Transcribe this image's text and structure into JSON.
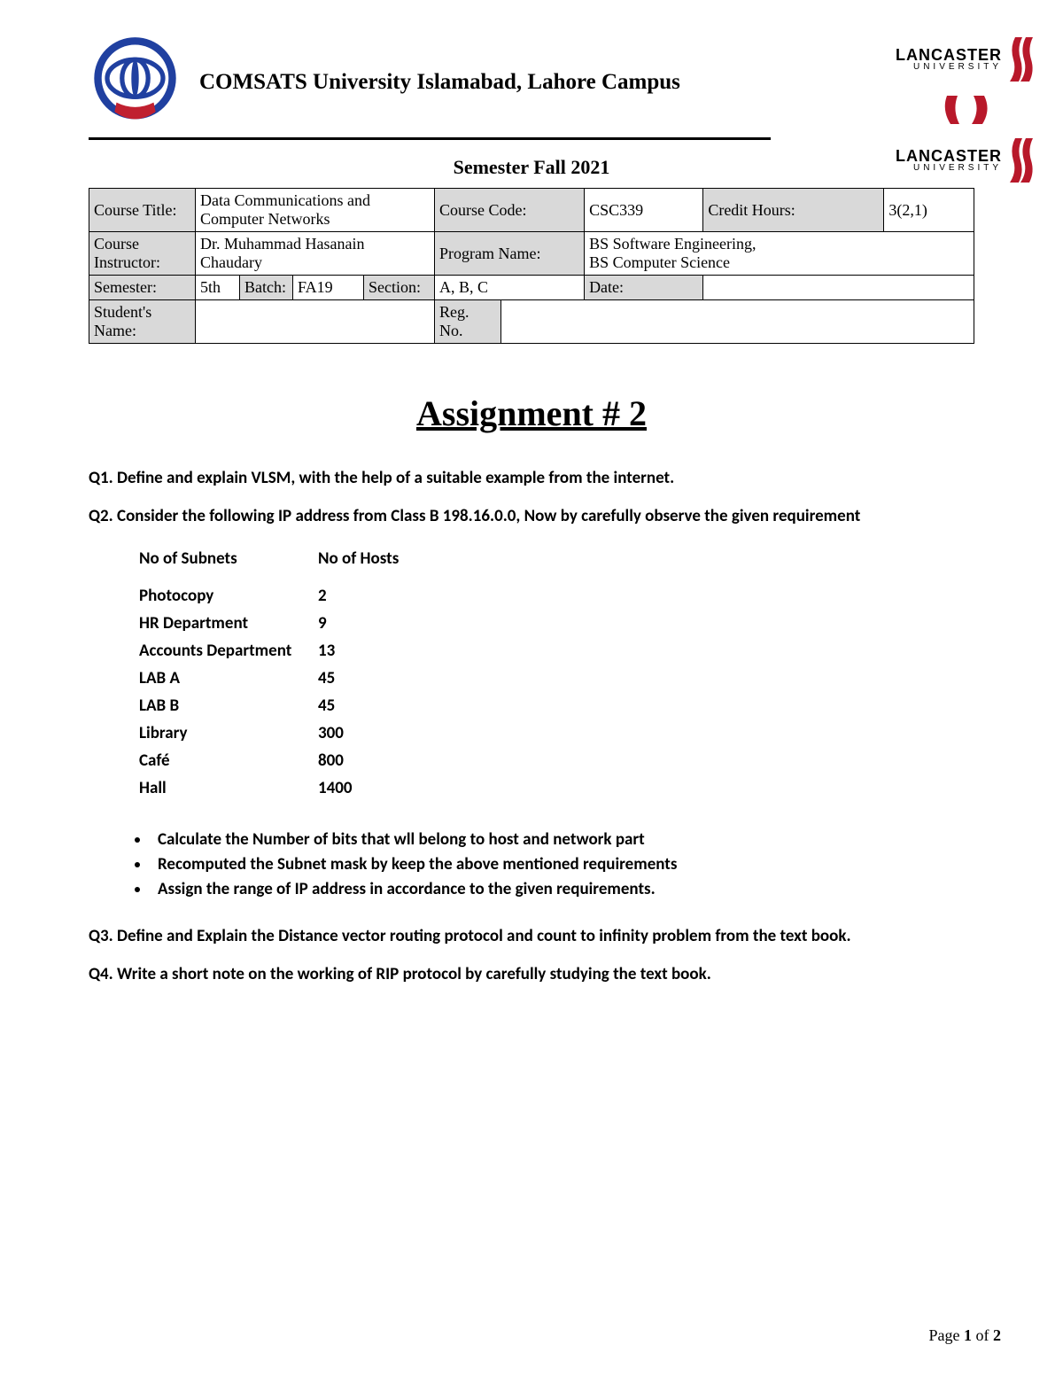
{
  "header": {
    "university": "COMSATS University Islamabad, Lahore Campus",
    "lancaster_top": "LANCASTER",
    "lancaster_bot": "UNIVERSITY",
    "semester_heading": "Semester Fall 2021"
  },
  "info_table": {
    "course_title_label": "Course Title:",
    "course_title": "Data Communications and Computer Networks",
    "course_code_label": "Course Code:",
    "course_code": "CSC339",
    "credit_label": "Credit Hours:",
    "credit": "3(2,1)",
    "instructor_label": "Course Instructor:",
    "instructor": "Dr. Muhammad Hasanain Chaudary",
    "program_label": "Program Name:",
    "program": "BS Software Engineering,\nBS Computer Science",
    "semester_label": "Semester:",
    "semester": "5th",
    "batch_label": "Batch:",
    "batch": "FA19",
    "section_label": "Section:",
    "section": "A, B, C",
    "date_label": "Date:",
    "date": "",
    "student_label": "Student's Name:",
    "student": "",
    "reg_label": "Reg. No.",
    "reg": ""
  },
  "body": {
    "title": "Assignment # 2",
    "q1": "Q1. Define and explain VLSM, with the help of a suitable example from the internet.",
    "q2": "Q2. Consider the following IP address from Class B 198.16.0.0, Now by carefully observe the given requirement",
    "subnet_headers": {
      "c1": "No of Subnets",
      "c2": "No of Hosts"
    },
    "subnets": [
      {
        "name": "Photocopy",
        "hosts": "2"
      },
      {
        "name": "HR Department",
        "hosts": "9"
      },
      {
        "name": "Accounts Department",
        "hosts": "13"
      },
      {
        "name": "LAB A",
        "hosts": "45"
      },
      {
        "name": "LAB B",
        "hosts": "45"
      },
      {
        "name": "Library",
        "hosts": "300"
      },
      {
        "name": "Café",
        "hosts": "800"
      },
      {
        "name": "Hall",
        "hosts": "1400"
      }
    ],
    "tasks": [
      "Calculate the Number of bits that wll belong to host and network part",
      "Recomputed the Subnet mask by keep the above mentioned requirements",
      "Assign the range of IP address in accordance to the given requirements."
    ],
    "q3": "Q3. Define and Explain the Distance vector routing protocol and count to infinity problem from the text book.",
    "q4": "Q4. Write a short note on the working of  RIP protocol by carefully studying the text book."
  },
  "footer": {
    "prefix": "Page ",
    "current": "1",
    "of": " of ",
    "total": "2"
  },
  "colors": {
    "shade": "#d9d9d9",
    "logo_blue": "#2040a0",
    "logo_red": "#c02030",
    "lancaster_red": "#b8182a"
  }
}
